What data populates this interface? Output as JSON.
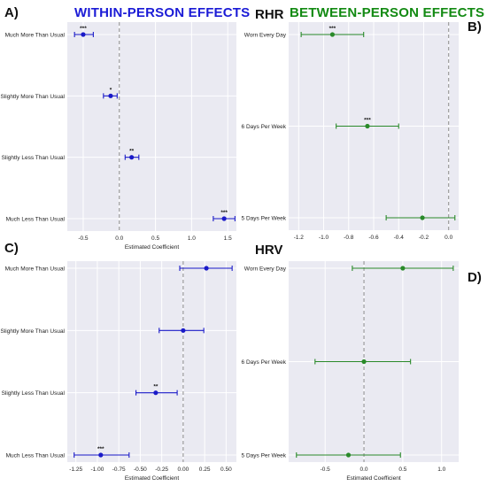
{
  "header": {
    "within_title": "WITHIN-PERSON EFFECTS",
    "between_title": "BETWEEN-PERSON EFFECTS",
    "rhr_label": "RHR",
    "hrv_label": "HRV",
    "panel_a": "A)",
    "panel_b": "B)",
    "panel_c": "C)",
    "panel_d": "D)"
  },
  "colors": {
    "within": "#1a1ac8",
    "between": "#2a8a2a",
    "plot_bg": "#eaeaf2",
    "grid": "#ffffff",
    "refline": "#8c8c8c",
    "within_title": "#1b1bd6",
    "between_title": "#138a13"
  },
  "chart_data": [
    {
      "id": "A",
      "type": "scatter",
      "subtype": "coefficient-plot",
      "xlabel": "Estimated Coefficient",
      "xlim": [
        -0.72,
        1.62
      ],
      "xticks": [
        -0.5,
        0.0,
        0.5,
        1.0,
        1.5
      ],
      "xtick_labels": [
        "-0.5",
        "0.0",
        "0.5",
        "1.0",
        "1.5"
      ],
      "reference_x": 0,
      "grid": true,
      "categories": [
        "Much More Than Usual",
        "Slightly More Than Usual",
        "Slightly Less Than Usual",
        "Much Less Than Usual"
      ],
      "estimates": [
        -0.5,
        -0.12,
        0.17,
        1.45
      ],
      "ci_low": [
        -0.62,
        -0.22,
        0.08,
        1.3
      ],
      "ci_high": [
        -0.36,
        -0.03,
        0.27,
        1.6
      ],
      "significance": [
        "***",
        "*",
        "**",
        "***"
      ]
    },
    {
      "id": "B",
      "type": "scatter",
      "subtype": "coefficient-plot",
      "xlabel": "",
      "xlim": [
        -1.28,
        0.08
      ],
      "xticks": [
        -1.2,
        -1.0,
        -0.8,
        -0.6,
        -0.4,
        -0.2,
        0.0
      ],
      "xtick_labels": [
        "-1.2",
        "-1.0",
        "-0.8",
        "-0.6",
        "-0.4",
        "-0.2",
        "0.0"
      ],
      "reference_x": 0,
      "grid": true,
      "categories": [
        "Worn Every Day",
        "6 Days Per Week",
        "5 Days Per Week"
      ],
      "estimates": [
        -0.93,
        -0.65,
        -0.21
      ],
      "ci_low": [
        -1.18,
        -0.9,
        -0.5
      ],
      "ci_high": [
        -0.68,
        -0.4,
        0.05
      ],
      "significance": [
        "***",
        "***",
        ""
      ]
    },
    {
      "id": "C",
      "type": "scatter",
      "subtype": "coefficient-plot",
      "xlabel": "Estimated Coefficient",
      "xlim": [
        -1.35,
        0.62
      ],
      "xticks": [
        -1.25,
        -1.0,
        -0.75,
        -0.5,
        -0.25,
        0.0,
        0.25,
        0.5
      ],
      "xtick_labels": [
        "-1.25",
        "-1.00",
        "-0.75",
        "-0.50",
        "-0.25",
        "0.00",
        "0.25",
        "0.50"
      ],
      "reference_x": 0,
      "grid": true,
      "categories": [
        "Much More Than Usual",
        "Slightly More Than Usual",
        "Slightly Less Than Usual",
        "Much Less Than Usual"
      ],
      "estimates": [
        0.27,
        0.0,
        -0.32,
        -0.96
      ],
      "ci_low": [
        -0.04,
        -0.28,
        -0.55,
        -1.27
      ],
      "ci_high": [
        0.57,
        0.24,
        -0.07,
        -0.63
      ],
      "significance": [
        "",
        "",
        "**",
        "***"
      ]
    },
    {
      "id": "D",
      "type": "scatter",
      "subtype": "coefficient-plot",
      "xlabel": "Estimated Coefficient",
      "xlim": [
        -0.97,
        1.22
      ],
      "xticks": [
        -0.5,
        0.0,
        0.5,
        1.0
      ],
      "xtick_labels": [
        "-0.5",
        "0.0",
        "0.5",
        "1.0"
      ],
      "reference_x": 0,
      "grid": true,
      "categories": [
        "Worn Every Day",
        "6 Days Per Week",
        "5 Days Per Week"
      ],
      "estimates": [
        0.5,
        0.0,
        -0.2
      ],
      "ci_low": [
        -0.15,
        -0.63,
        -0.87
      ],
      "ci_high": [
        1.15,
        0.6,
        0.47
      ],
      "significance": [
        "",
        "",
        ""
      ]
    }
  ]
}
